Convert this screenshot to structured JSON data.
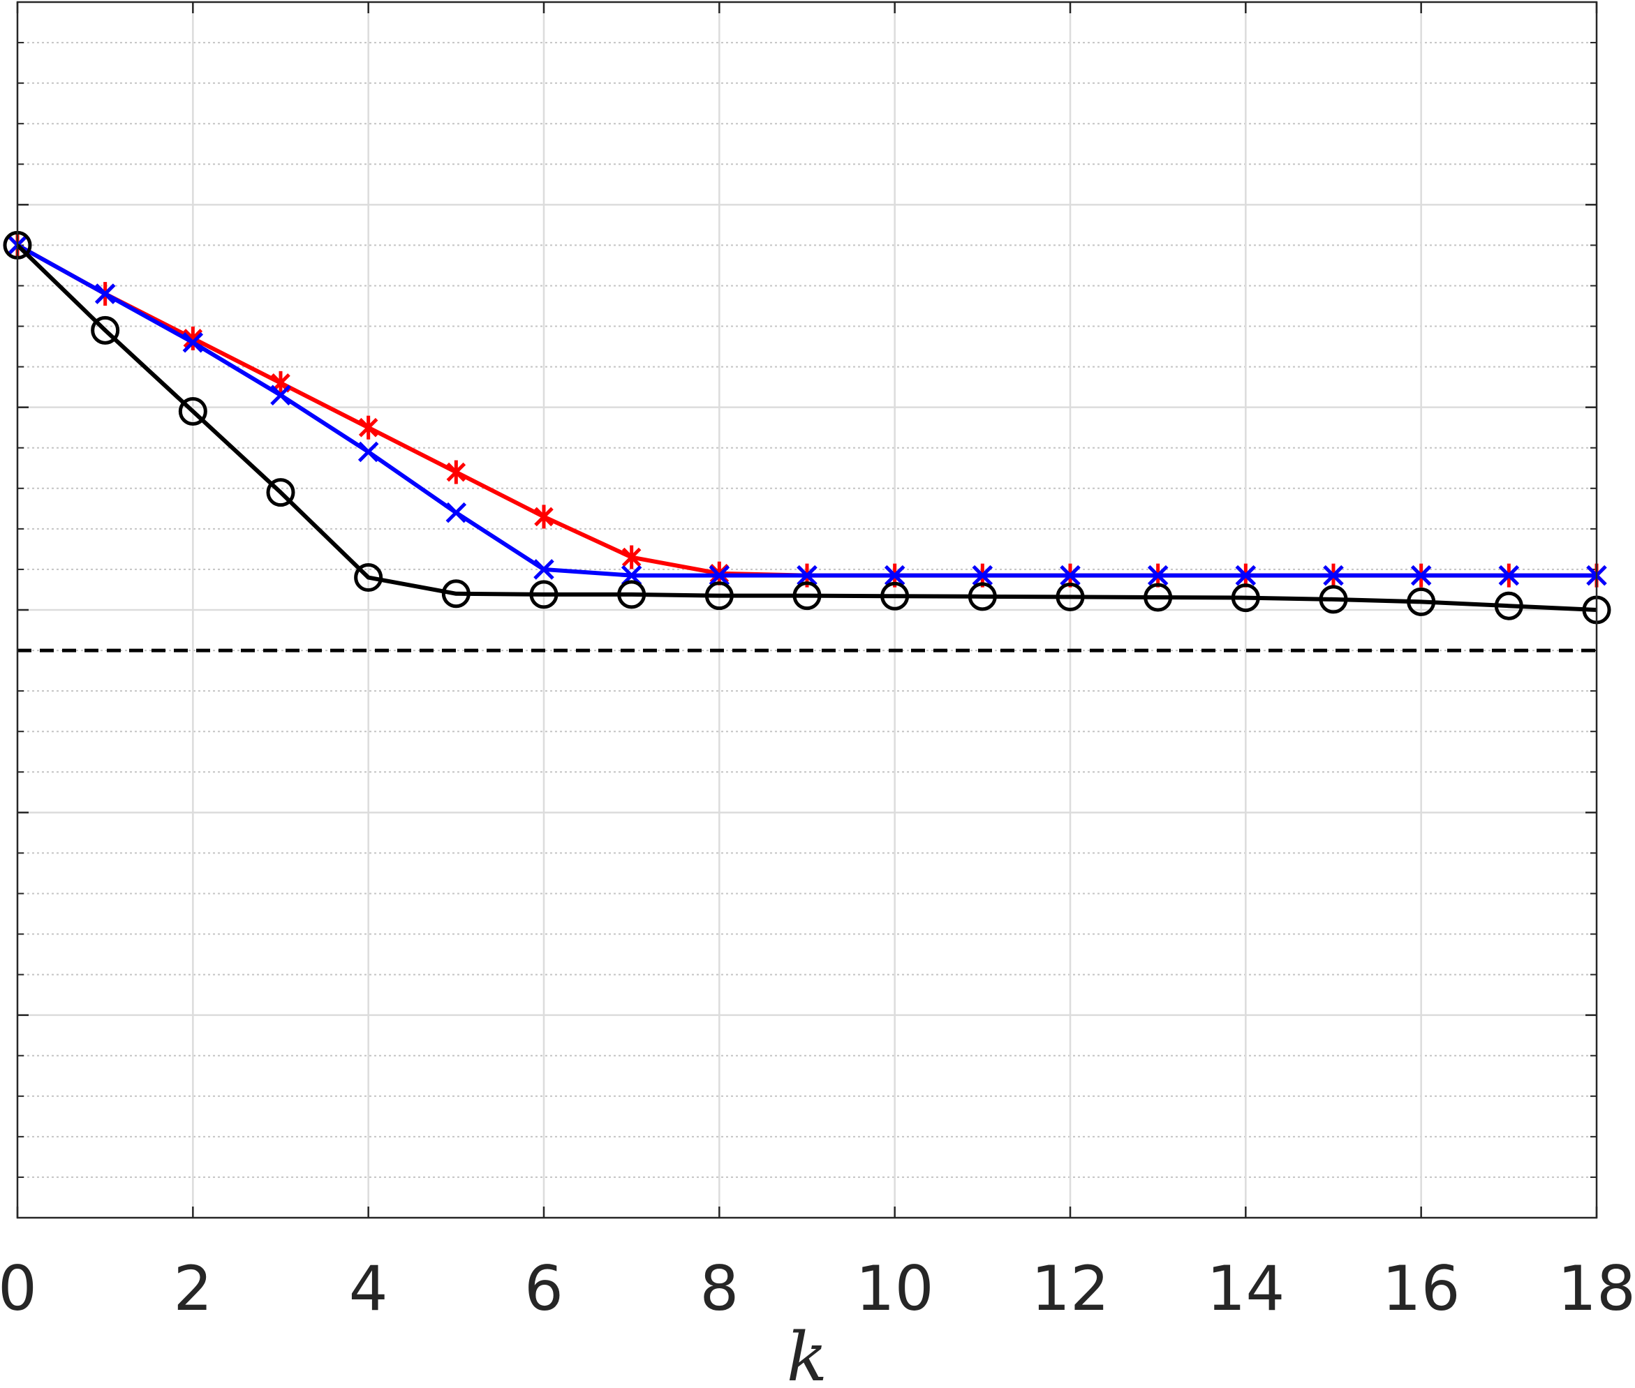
{
  "chart_data": {
    "type": "line",
    "title": "",
    "xlabel": "k",
    "ylabel": "",
    "xlim": [
      0,
      18
    ],
    "ylim": [
      0,
      30
    ],
    "xticks": [
      0,
      2,
      4,
      6,
      8,
      10,
      12,
      14,
      16,
      18
    ],
    "xtick_labels": [
      "0",
      "2",
      "4",
      "6",
      "8",
      "10",
      "12",
      "14",
      "16",
      "18"
    ],
    "major_grid": true,
    "minor_grid": true,
    "x": [
      0,
      1,
      2,
      3,
      4,
      5,
      6,
      7,
      8,
      9,
      10,
      11,
      12,
      13,
      14,
      15,
      16,
      17,
      18
    ],
    "series": [
      {
        "color": "#ff0000",
        "marker": "asterisk",
        "values": [
          24.0,
          22.8,
          21.7,
          20.6,
          19.5,
          18.4,
          17.3,
          16.3,
          15.9,
          15.85,
          15.85,
          15.85,
          15.85,
          15.85,
          15.85,
          15.85,
          15.85,
          15.85,
          15.85
        ]
      },
      {
        "color": "#0000ff",
        "marker": "x",
        "values": [
          24.0,
          22.8,
          21.6,
          20.3,
          18.9,
          17.4,
          16.0,
          15.85,
          15.85,
          15.85,
          15.85,
          15.85,
          15.85,
          15.85,
          15.85,
          15.85,
          15.85,
          15.85,
          15.85
        ]
      },
      {
        "color": "#000000",
        "marker": "circle",
        "values": [
          24.0,
          21.9,
          19.9,
          17.9,
          15.8,
          15.4,
          15.38,
          15.38,
          15.35,
          15.35,
          15.34,
          15.33,
          15.32,
          15.31,
          15.3,
          15.26,
          15.2,
          15.1,
          15.0
        ]
      }
    ],
    "reference_line": {
      "y": 14.0,
      "style": "dashed",
      "color": "#000000"
    }
  }
}
